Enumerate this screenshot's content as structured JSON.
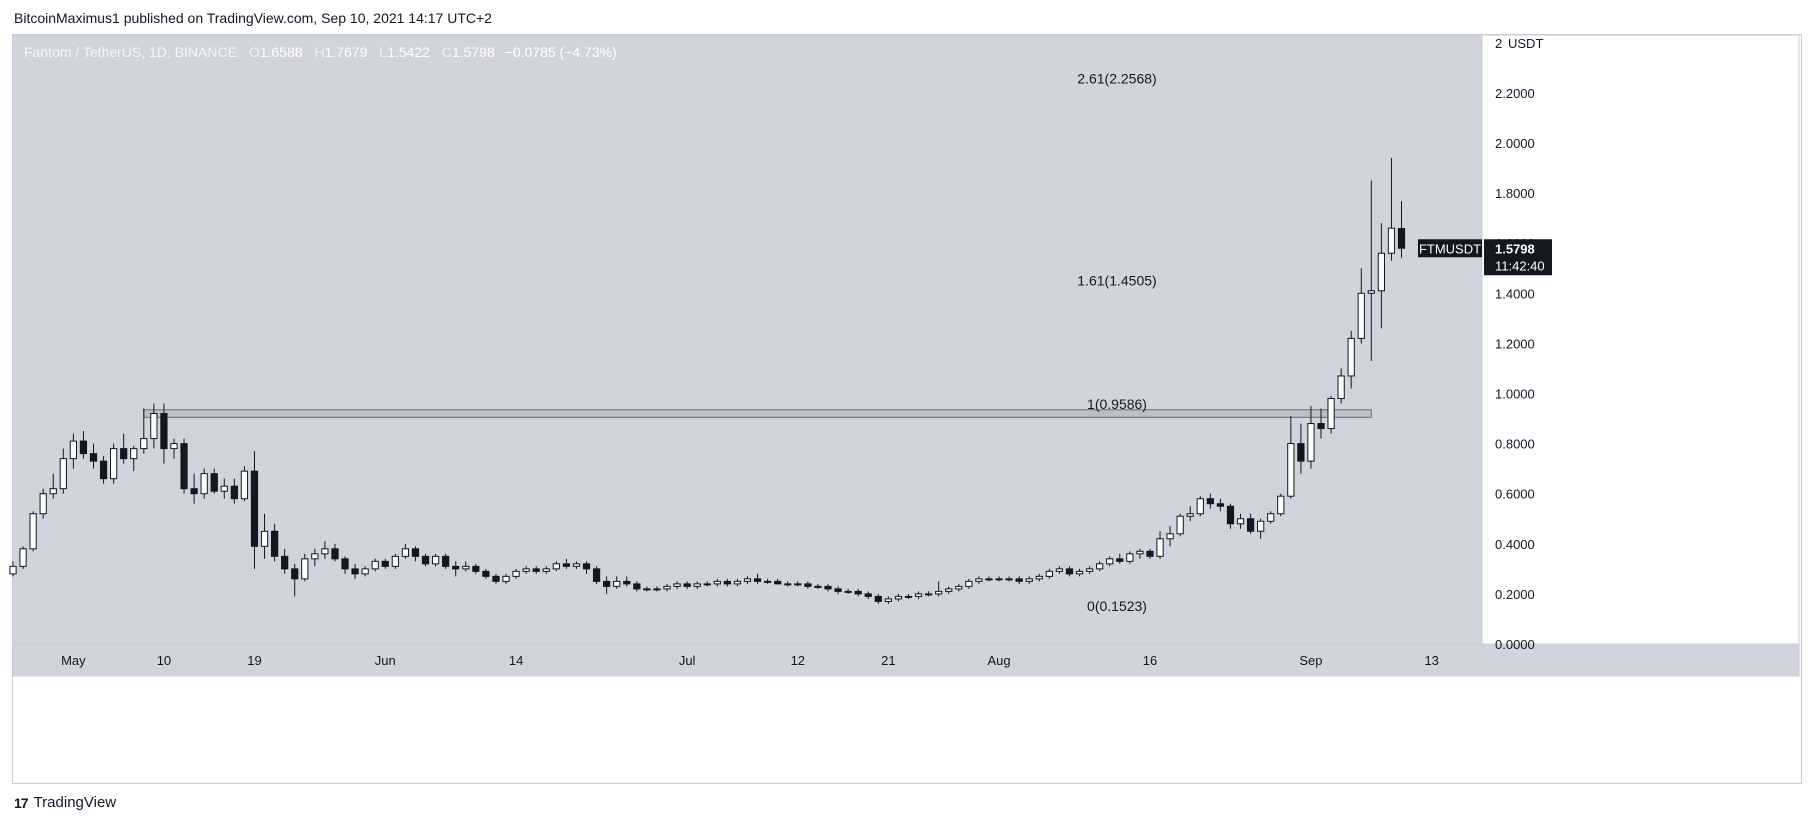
{
  "publish_line": "BitcoinMaximus1 published on TradingView.com, Sep 10, 2021 14:17 UTC+2",
  "brand": {
    "logo_icon": "tradingview-logo-icon",
    "name": "TradingView"
  },
  "colors": {
    "plot_bg": "#d1d4dc",
    "up": "#ffffff",
    "down": "#131722",
    "wick": "#131722"
  },
  "legend": {
    "symbol": "Fantom / TetherUS, 1D, BINANCE",
    "o_label": "O",
    "o": "1.6588",
    "h_label": "H",
    "h": "1.7679",
    "l_label": "L",
    "l": "1.5422",
    "c_label": "C",
    "c": "1.5798",
    "change": "−0.0785 (−4.73%)"
  },
  "chart_data": {
    "type": "candlestick",
    "title": "Fantom / TetherUS, 1D, BINANCE",
    "ylabel": "USDT",
    "ylim": [
      0,
      2
    ],
    "y_ticks": [
      "0.0000",
      "0.2000",
      "0.4000",
      "0.6000",
      "0.8000",
      "1.0000",
      "1.2000",
      "1.4000",
      "1.6000",
      "1.8000",
      "2.0000",
      "2.2000"
    ],
    "y_top_label": "2",
    "x_ticks": [
      {
        "label": "May",
        "date": "2021-05-01"
      },
      {
        "label": "10",
        "date": "2021-05-10"
      },
      {
        "label": "19",
        "date": "2021-05-19"
      },
      {
        "label": "Jun",
        "date": "2021-06-01"
      },
      {
        "label": "14",
        "date": "2021-06-14"
      },
      {
        "label": "Jul",
        "date": "2021-07-01"
      },
      {
        "label": "12",
        "date": "2021-07-12"
      },
      {
        "label": "21",
        "date": "2021-07-21"
      },
      {
        "label": "Aug",
        "date": "2021-08-01"
      },
      {
        "label": "16",
        "date": "2021-08-16"
      },
      {
        "label": "Sep",
        "date": "2021-09-01"
      },
      {
        "label": "13",
        "date": "2021-09-13"
      }
    ],
    "x_range": [
      "2021-04-25",
      "2021-09-18"
    ],
    "price_tag": {
      "symbol": "FTMUSDT",
      "price": "1.5798",
      "countdown": "11:42:40",
      "value": 1.5798
    },
    "fib_levels": [
      {
        "label": "0(0.1523)",
        "value": 0.1523
      },
      {
        "label": "1(0.9586)",
        "value": 0.9586
      },
      {
        "label": "1.61(1.4505)",
        "value": 1.4505
      },
      {
        "label": "2.61(2.2568)",
        "value": 2.2568
      }
    ],
    "resistance_zone": {
      "low": 0.905,
      "high": 0.935,
      "start": "2021-05-08",
      "end": "2021-09-07"
    },
    "candles": [
      {
        "t": "2021-04-25",
        "o": 0.28,
        "h": 0.33,
        "l": 0.27,
        "c": 0.31
      },
      {
        "t": "2021-04-26",
        "o": 0.31,
        "h": 0.39,
        "l": 0.3,
        "c": 0.38
      },
      {
        "t": "2021-04-27",
        "o": 0.38,
        "h": 0.53,
        "l": 0.37,
        "c": 0.52
      },
      {
        "t": "2021-04-28",
        "o": 0.52,
        "h": 0.62,
        "l": 0.5,
        "c": 0.6
      },
      {
        "t": "2021-04-29",
        "o": 0.6,
        "h": 0.68,
        "l": 0.58,
        "c": 0.62
      },
      {
        "t": "2021-04-30",
        "o": 0.62,
        "h": 0.78,
        "l": 0.6,
        "c": 0.74
      },
      {
        "t": "2021-05-01",
        "o": 0.74,
        "h": 0.84,
        "l": 0.7,
        "c": 0.81
      },
      {
        "t": "2021-05-02",
        "o": 0.81,
        "h": 0.85,
        "l": 0.74,
        "c": 0.76
      },
      {
        "t": "2021-05-03",
        "o": 0.76,
        "h": 0.8,
        "l": 0.7,
        "c": 0.73
      },
      {
        "t": "2021-05-04",
        "o": 0.73,
        "h": 0.75,
        "l": 0.64,
        "c": 0.66
      },
      {
        "t": "2021-05-05",
        "o": 0.66,
        "h": 0.8,
        "l": 0.64,
        "c": 0.78
      },
      {
        "t": "2021-05-06",
        "o": 0.78,
        "h": 0.84,
        "l": 0.72,
        "c": 0.74
      },
      {
        "t": "2021-05-07",
        "o": 0.74,
        "h": 0.79,
        "l": 0.69,
        "c": 0.78
      },
      {
        "t": "2021-05-08",
        "o": 0.78,
        "h": 0.94,
        "l": 0.76,
        "c": 0.82
      },
      {
        "t": "2021-05-09",
        "o": 0.82,
        "h": 0.96,
        "l": 0.78,
        "c": 0.92
      },
      {
        "t": "2021-05-10",
        "o": 0.92,
        "h": 0.96,
        "l": 0.72,
        "c": 0.78
      },
      {
        "t": "2021-05-11",
        "o": 0.78,
        "h": 0.82,
        "l": 0.74,
        "c": 0.8
      },
      {
        "t": "2021-05-12",
        "o": 0.8,
        "h": 0.82,
        "l": 0.6,
        "c": 0.62
      },
      {
        "t": "2021-05-13",
        "o": 0.62,
        "h": 0.68,
        "l": 0.56,
        "c": 0.6
      },
      {
        "t": "2021-05-14",
        "o": 0.6,
        "h": 0.7,
        "l": 0.58,
        "c": 0.68
      },
      {
        "t": "2021-05-15",
        "o": 0.68,
        "h": 0.7,
        "l": 0.6,
        "c": 0.61
      },
      {
        "t": "2021-05-16",
        "o": 0.61,
        "h": 0.66,
        "l": 0.58,
        "c": 0.63
      },
      {
        "t": "2021-05-17",
        "o": 0.63,
        "h": 0.66,
        "l": 0.56,
        "c": 0.58
      },
      {
        "t": "2021-05-18",
        "o": 0.58,
        "h": 0.71,
        "l": 0.57,
        "c": 0.69
      },
      {
        "t": "2021-05-19",
        "o": 0.69,
        "h": 0.77,
        "l": 0.3,
        "c": 0.39
      },
      {
        "t": "2021-05-20",
        "o": 0.39,
        "h": 0.52,
        "l": 0.34,
        "c": 0.45
      },
      {
        "t": "2021-05-21",
        "o": 0.45,
        "h": 0.48,
        "l": 0.33,
        "c": 0.35
      },
      {
        "t": "2021-05-22",
        "o": 0.35,
        "h": 0.38,
        "l": 0.28,
        "c": 0.3
      },
      {
        "t": "2021-05-23",
        "o": 0.3,
        "h": 0.32,
        "l": 0.19,
        "c": 0.26
      },
      {
        "t": "2021-05-24",
        "o": 0.26,
        "h": 0.36,
        "l": 0.25,
        "c": 0.34
      },
      {
        "t": "2021-05-25",
        "o": 0.34,
        "h": 0.38,
        "l": 0.31,
        "c": 0.36
      },
      {
        "t": "2021-05-26",
        "o": 0.36,
        "h": 0.41,
        "l": 0.34,
        "c": 0.38
      },
      {
        "t": "2021-05-27",
        "o": 0.38,
        "h": 0.4,
        "l": 0.33,
        "c": 0.34
      },
      {
        "t": "2021-05-28",
        "o": 0.34,
        "h": 0.35,
        "l": 0.28,
        "c": 0.3
      },
      {
        "t": "2021-05-29",
        "o": 0.3,
        "h": 0.32,
        "l": 0.26,
        "c": 0.28
      },
      {
        "t": "2021-05-30",
        "o": 0.28,
        "h": 0.31,
        "l": 0.27,
        "c": 0.3
      },
      {
        "t": "2021-05-31",
        "o": 0.3,
        "h": 0.34,
        "l": 0.29,
        "c": 0.33
      },
      {
        "t": "2021-06-01",
        "o": 0.33,
        "h": 0.34,
        "l": 0.3,
        "c": 0.31
      },
      {
        "t": "2021-06-02",
        "o": 0.31,
        "h": 0.36,
        "l": 0.3,
        "c": 0.35
      },
      {
        "t": "2021-06-03",
        "o": 0.35,
        "h": 0.4,
        "l": 0.34,
        "c": 0.38
      },
      {
        "t": "2021-06-04",
        "o": 0.38,
        "h": 0.39,
        "l": 0.33,
        "c": 0.35
      },
      {
        "t": "2021-06-05",
        "o": 0.35,
        "h": 0.36,
        "l": 0.31,
        "c": 0.32
      },
      {
        "t": "2021-06-06",
        "o": 0.32,
        "h": 0.36,
        "l": 0.31,
        "c": 0.35
      },
      {
        "t": "2021-06-07",
        "o": 0.35,
        "h": 0.36,
        "l": 0.3,
        "c": 0.31
      },
      {
        "t": "2021-06-08",
        "o": 0.31,
        "h": 0.33,
        "l": 0.27,
        "c": 0.3
      },
      {
        "t": "2021-06-09",
        "o": 0.3,
        "h": 0.33,
        "l": 0.29,
        "c": 0.31
      },
      {
        "t": "2021-06-10",
        "o": 0.31,
        "h": 0.32,
        "l": 0.28,
        "c": 0.29
      },
      {
        "t": "2021-06-11",
        "o": 0.29,
        "h": 0.3,
        "l": 0.26,
        "c": 0.27
      },
      {
        "t": "2021-06-12",
        "o": 0.27,
        "h": 0.28,
        "l": 0.24,
        "c": 0.25
      },
      {
        "t": "2021-06-13",
        "o": 0.25,
        "h": 0.28,
        "l": 0.24,
        "c": 0.27
      },
      {
        "t": "2021-06-14",
        "o": 0.27,
        "h": 0.3,
        "l": 0.26,
        "c": 0.29
      },
      {
        "t": "2021-06-15",
        "o": 0.29,
        "h": 0.31,
        "l": 0.28,
        "c": 0.3
      },
      {
        "t": "2021-06-16",
        "o": 0.3,
        "h": 0.31,
        "l": 0.28,
        "c": 0.29
      },
      {
        "t": "2021-06-17",
        "o": 0.29,
        "h": 0.31,
        "l": 0.28,
        "c": 0.3
      },
      {
        "t": "2021-06-18",
        "o": 0.3,
        "h": 0.33,
        "l": 0.29,
        "c": 0.32
      },
      {
        "t": "2021-06-19",
        "o": 0.32,
        "h": 0.34,
        "l": 0.3,
        "c": 0.31
      },
      {
        "t": "2021-06-20",
        "o": 0.31,
        "h": 0.33,
        "l": 0.3,
        "c": 0.32
      },
      {
        "t": "2021-06-21",
        "o": 0.32,
        "h": 0.33,
        "l": 0.28,
        "c": 0.3
      },
      {
        "t": "2021-06-22",
        "o": 0.3,
        "h": 0.31,
        "l": 0.24,
        "c": 0.25
      },
      {
        "t": "2021-06-23",
        "o": 0.25,
        "h": 0.27,
        "l": 0.2,
        "c": 0.23
      },
      {
        "t": "2021-06-24",
        "o": 0.23,
        "h": 0.27,
        "l": 0.22,
        "c": 0.25
      },
      {
        "t": "2021-06-25",
        "o": 0.25,
        "h": 0.27,
        "l": 0.23,
        "c": 0.24
      },
      {
        "t": "2021-06-26",
        "o": 0.24,
        "h": 0.25,
        "l": 0.21,
        "c": 0.22
      },
      {
        "t": "2021-06-27",
        "o": 0.22,
        "h": 0.23,
        "l": 0.21,
        "c": 0.22
      },
      {
        "t": "2021-06-28",
        "o": 0.22,
        "h": 0.23,
        "l": 0.21,
        "c": 0.22
      },
      {
        "t": "2021-06-29",
        "o": 0.22,
        "h": 0.24,
        "l": 0.21,
        "c": 0.23
      },
      {
        "t": "2021-06-30",
        "o": 0.23,
        "h": 0.25,
        "l": 0.22,
        "c": 0.24
      },
      {
        "t": "2021-07-01",
        "o": 0.24,
        "h": 0.25,
        "l": 0.22,
        "c": 0.23
      },
      {
        "t": "2021-07-02",
        "o": 0.23,
        "h": 0.25,
        "l": 0.22,
        "c": 0.24
      },
      {
        "t": "2021-07-03",
        "o": 0.24,
        "h": 0.25,
        "l": 0.23,
        "c": 0.24
      },
      {
        "t": "2021-07-04",
        "o": 0.24,
        "h": 0.26,
        "l": 0.23,
        "c": 0.25
      },
      {
        "t": "2021-07-05",
        "o": 0.25,
        "h": 0.26,
        "l": 0.23,
        "c": 0.24
      },
      {
        "t": "2021-07-06",
        "o": 0.24,
        "h": 0.26,
        "l": 0.23,
        "c": 0.25
      },
      {
        "t": "2021-07-07",
        "o": 0.25,
        "h": 0.27,
        "l": 0.24,
        "c": 0.26
      },
      {
        "t": "2021-07-08",
        "o": 0.26,
        "h": 0.28,
        "l": 0.24,
        "c": 0.25
      },
      {
        "t": "2021-07-09",
        "o": 0.25,
        "h": 0.26,
        "l": 0.24,
        "c": 0.25
      },
      {
        "t": "2021-07-10",
        "o": 0.25,
        "h": 0.26,
        "l": 0.24,
        "c": 0.24
      },
      {
        "t": "2021-07-11",
        "o": 0.24,
        "h": 0.25,
        "l": 0.23,
        "c": 0.24
      },
      {
        "t": "2021-07-12",
        "o": 0.24,
        "h": 0.25,
        "l": 0.23,
        "c": 0.24
      },
      {
        "t": "2021-07-13",
        "o": 0.24,
        "h": 0.25,
        "l": 0.22,
        "c": 0.23
      },
      {
        "t": "2021-07-14",
        "o": 0.23,
        "h": 0.24,
        "l": 0.22,
        "c": 0.23
      },
      {
        "t": "2021-07-15",
        "o": 0.23,
        "h": 0.24,
        "l": 0.21,
        "c": 0.22
      },
      {
        "t": "2021-07-16",
        "o": 0.22,
        "h": 0.23,
        "l": 0.2,
        "c": 0.21
      },
      {
        "t": "2021-07-17",
        "o": 0.21,
        "h": 0.22,
        "l": 0.2,
        "c": 0.21
      },
      {
        "t": "2021-07-18",
        "o": 0.21,
        "h": 0.22,
        "l": 0.19,
        "c": 0.2
      },
      {
        "t": "2021-07-19",
        "o": 0.2,
        "h": 0.21,
        "l": 0.18,
        "c": 0.19
      },
      {
        "t": "2021-07-20",
        "o": 0.19,
        "h": 0.2,
        "l": 0.16,
        "c": 0.17
      },
      {
        "t": "2021-07-21",
        "o": 0.17,
        "h": 0.19,
        "l": 0.16,
        "c": 0.18
      },
      {
        "t": "2021-07-22",
        "o": 0.18,
        "h": 0.2,
        "l": 0.17,
        "c": 0.19
      },
      {
        "t": "2021-07-23",
        "o": 0.19,
        "h": 0.2,
        "l": 0.18,
        "c": 0.19
      },
      {
        "t": "2021-07-24",
        "o": 0.19,
        "h": 0.21,
        "l": 0.18,
        "c": 0.2
      },
      {
        "t": "2021-07-25",
        "o": 0.2,
        "h": 0.21,
        "l": 0.19,
        "c": 0.2
      },
      {
        "t": "2021-07-26",
        "o": 0.2,
        "h": 0.25,
        "l": 0.19,
        "c": 0.21
      },
      {
        "t": "2021-07-27",
        "o": 0.21,
        "h": 0.23,
        "l": 0.2,
        "c": 0.22
      },
      {
        "t": "2021-07-28",
        "o": 0.22,
        "h": 0.24,
        "l": 0.21,
        "c": 0.23
      },
      {
        "t": "2021-07-29",
        "o": 0.23,
        "h": 0.26,
        "l": 0.22,
        "c": 0.25
      },
      {
        "t": "2021-07-30",
        "o": 0.25,
        "h": 0.27,
        "l": 0.24,
        "c": 0.26
      },
      {
        "t": "2021-07-31",
        "o": 0.26,
        "h": 0.27,
        "l": 0.25,
        "c": 0.26
      },
      {
        "t": "2021-08-01",
        "o": 0.26,
        "h": 0.27,
        "l": 0.25,
        "c": 0.26
      },
      {
        "t": "2021-08-02",
        "o": 0.26,
        "h": 0.27,
        "l": 0.25,
        "c": 0.26
      },
      {
        "t": "2021-08-03",
        "o": 0.26,
        "h": 0.27,
        "l": 0.24,
        "c": 0.25
      },
      {
        "t": "2021-08-04",
        "o": 0.25,
        "h": 0.27,
        "l": 0.24,
        "c": 0.26
      },
      {
        "t": "2021-08-05",
        "o": 0.26,
        "h": 0.28,
        "l": 0.25,
        "c": 0.27
      },
      {
        "t": "2021-08-06",
        "o": 0.27,
        "h": 0.3,
        "l": 0.26,
        "c": 0.29
      },
      {
        "t": "2021-08-07",
        "o": 0.29,
        "h": 0.31,
        "l": 0.28,
        "c": 0.3
      },
      {
        "t": "2021-08-08",
        "o": 0.3,
        "h": 0.31,
        "l": 0.27,
        "c": 0.28
      },
      {
        "t": "2021-08-09",
        "o": 0.28,
        "h": 0.3,
        "l": 0.27,
        "c": 0.29
      },
      {
        "t": "2021-08-10",
        "o": 0.29,
        "h": 0.31,
        "l": 0.28,
        "c": 0.3
      },
      {
        "t": "2021-08-11",
        "o": 0.3,
        "h": 0.33,
        "l": 0.29,
        "c": 0.32
      },
      {
        "t": "2021-08-12",
        "o": 0.32,
        "h": 0.35,
        "l": 0.31,
        "c": 0.34
      },
      {
        "t": "2021-08-13",
        "o": 0.34,
        "h": 0.36,
        "l": 0.32,
        "c": 0.33
      },
      {
        "t": "2021-08-14",
        "o": 0.33,
        "h": 0.37,
        "l": 0.32,
        "c": 0.36
      },
      {
        "t": "2021-08-15",
        "o": 0.36,
        "h": 0.38,
        "l": 0.34,
        "c": 0.37
      },
      {
        "t": "2021-08-16",
        "o": 0.37,
        "h": 0.38,
        "l": 0.34,
        "c": 0.35
      },
      {
        "t": "2021-08-17",
        "o": 0.35,
        "h": 0.45,
        "l": 0.34,
        "c": 0.42
      },
      {
        "t": "2021-08-18",
        "o": 0.42,
        "h": 0.47,
        "l": 0.39,
        "c": 0.44
      },
      {
        "t": "2021-08-19",
        "o": 0.44,
        "h": 0.52,
        "l": 0.43,
        "c": 0.51
      },
      {
        "t": "2021-08-20",
        "o": 0.51,
        "h": 0.55,
        "l": 0.49,
        "c": 0.52
      },
      {
        "t": "2021-08-21",
        "o": 0.52,
        "h": 0.59,
        "l": 0.51,
        "c": 0.58
      },
      {
        "t": "2021-08-22",
        "o": 0.58,
        "h": 0.6,
        "l": 0.54,
        "c": 0.56
      },
      {
        "t": "2021-08-23",
        "o": 0.56,
        "h": 0.58,
        "l": 0.53,
        "c": 0.55
      },
      {
        "t": "2021-08-24",
        "o": 0.55,
        "h": 0.56,
        "l": 0.46,
        "c": 0.48
      },
      {
        "t": "2021-08-25",
        "o": 0.48,
        "h": 0.52,
        "l": 0.46,
        "c": 0.5
      },
      {
        "t": "2021-08-26",
        "o": 0.5,
        "h": 0.52,
        "l": 0.44,
        "c": 0.45
      },
      {
        "t": "2021-08-27",
        "o": 0.45,
        "h": 0.5,
        "l": 0.42,
        "c": 0.49
      },
      {
        "t": "2021-08-28",
        "o": 0.49,
        "h": 0.53,
        "l": 0.48,
        "c": 0.52
      },
      {
        "t": "2021-08-29",
        "o": 0.52,
        "h": 0.6,
        "l": 0.51,
        "c": 0.59
      },
      {
        "t": "2021-08-30",
        "o": 0.59,
        "h": 0.91,
        "l": 0.58,
        "c": 0.8
      },
      {
        "t": "2021-08-31",
        "o": 0.8,
        "h": 0.88,
        "l": 0.68,
        "c": 0.73
      },
      {
        "t": "2021-09-01",
        "o": 0.73,
        "h": 0.95,
        "l": 0.7,
        "c": 0.88
      },
      {
        "t": "2021-09-02",
        "o": 0.88,
        "h": 0.94,
        "l": 0.82,
        "c": 0.86
      },
      {
        "t": "2021-09-03",
        "o": 0.86,
        "h": 0.99,
        "l": 0.84,
        "c": 0.98
      },
      {
        "t": "2021-09-04",
        "o": 0.98,
        "h": 1.1,
        "l": 0.96,
        "c": 1.07
      },
      {
        "t": "2021-09-05",
        "o": 1.07,
        "h": 1.25,
        "l": 1.02,
        "c": 1.22
      },
      {
        "t": "2021-09-06",
        "o": 1.22,
        "h": 1.5,
        "l": 1.2,
        "c": 1.4
      },
      {
        "t": "2021-09-07",
        "o": 1.4,
        "h": 1.85,
        "l": 1.13,
        "c": 1.41
      },
      {
        "t": "2021-09-08",
        "o": 1.41,
        "h": 1.68,
        "l": 1.26,
        "c": 1.56
      },
      {
        "t": "2021-09-09",
        "o": 1.56,
        "h": 1.94,
        "l": 1.53,
        "c": 1.66
      },
      {
        "t": "2021-09-10",
        "o": 1.6588,
        "h": 1.7679,
        "l": 1.5422,
        "c": 1.5798
      }
    ]
  }
}
